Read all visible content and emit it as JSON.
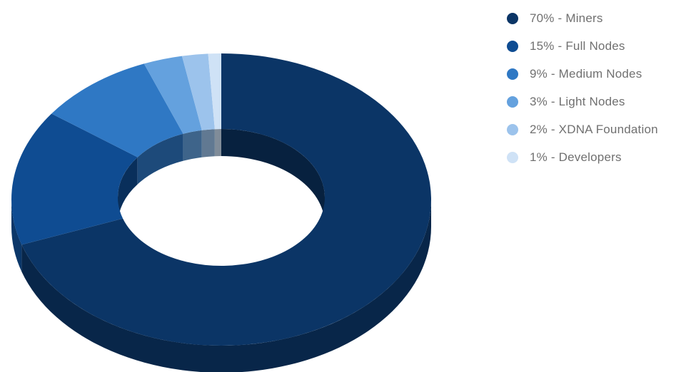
{
  "chart_data": {
    "type": "pie",
    "variant": "3d-donut",
    "slices": [
      {
        "label": "70% - Miners",
        "value": 70,
        "color": "#0b3566"
      },
      {
        "label": "15% - Full Nodes",
        "value": 15,
        "color": "#0f4c92"
      },
      {
        "label": "9% - Medium Nodes",
        "value": 9,
        "color": "#2f78c4"
      },
      {
        "label": "3% - Light Nodes",
        "value": 3,
        "color": "#64a1de"
      },
      {
        "label": "2% - XDNA Foundation",
        "value": 2,
        "color": "#9cc3ec"
      },
      {
        "label": "1% - Developers",
        "value": 1,
        "color": "#cfe2f6"
      }
    ],
    "legend_position": "right",
    "title": "",
    "xlabel": "",
    "ylabel": ""
  }
}
